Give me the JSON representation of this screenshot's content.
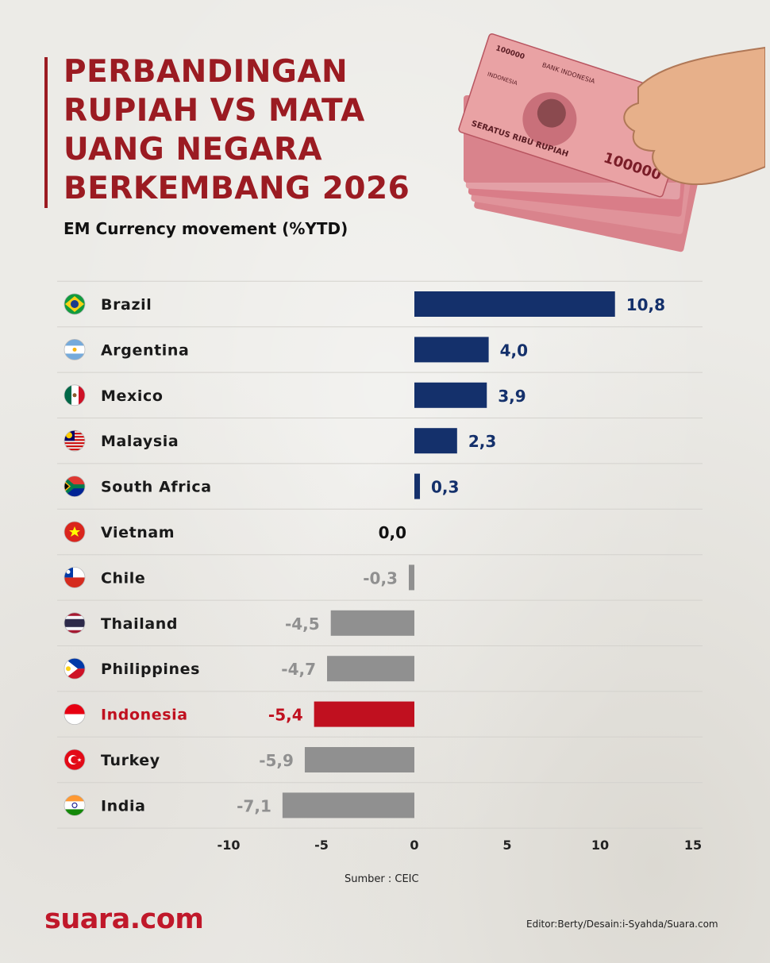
{
  "title": "Perbandingan Rupiah vs Mata Uang Negara Berkembang 2026",
  "subtitle": "EM Currency movement (%YTD)",
  "source": "Sumber : CEIC",
  "logo": "suara.com",
  "credit": "Editor:Berty/Desain:i-Syahda/Suara.com",
  "colors": {
    "positive": "#14306b",
    "negative": "#909090",
    "highlight": "#c0101f",
    "title": "#9b1b22"
  },
  "banknote_text": {
    "bank": "BANK INDONESIA",
    "denomination": "100000",
    "words": "SERATUS RIBU RUPIAH",
    "country": "INDONESIA"
  },
  "chart_data": {
    "type": "bar",
    "orientation": "horizontal",
    "title": "EM Currency movement (%YTD)",
    "xlim": [
      -10,
      15
    ],
    "xticks": [
      "-10",
      "-5",
      "0",
      "5",
      "10",
      "15"
    ],
    "tick_values": [
      -10,
      -5,
      0,
      5,
      10,
      15
    ],
    "grid": "horizontal separators",
    "categories": [
      "Brazil",
      "Argentina",
      "Mexico",
      "Malaysia",
      "South Africa",
      "Vietnam",
      "Chile",
      "Thailand",
      "Philippines",
      "Indonesia",
      "Turkey",
      "India"
    ],
    "values": [
      10.8,
      4.0,
      3.9,
      2.3,
      0.3,
      0.0,
      -0.3,
      -4.5,
      -4.7,
      -5.4,
      -5.9,
      -7.1
    ],
    "labels": [
      "10,8",
      "4,0",
      "3,9",
      "2,3",
      "0,3",
      "0,0",
      "-0,3",
      "-4,5",
      "-4,7",
      "-5,4",
      "-5,9",
      "-7,1"
    ],
    "highlight": "Indonesia",
    "flags": [
      "brazil-flag",
      "argentina-flag",
      "mexico-flag",
      "malaysia-flag",
      "south-africa-flag",
      "vietnam-flag",
      "chile-flag",
      "thailand-flag",
      "philippines-flag",
      "indonesia-flag",
      "turkey-flag",
      "india-flag"
    ]
  }
}
